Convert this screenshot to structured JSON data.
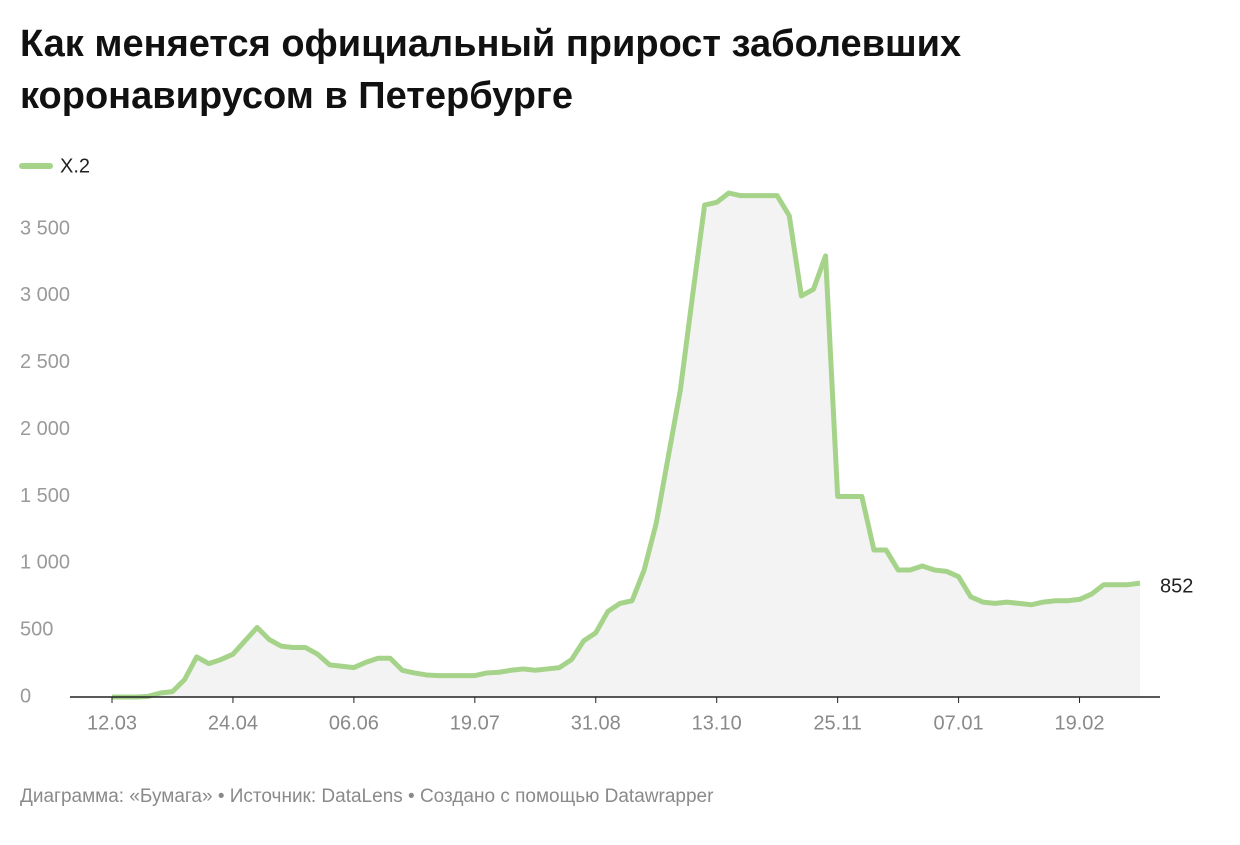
{
  "chart_data": {
    "type": "area-line",
    "title": "Как меняется официальный прирост заболевших коронавирусом в Петербурге",
    "source": "Диаграмма: «Бумага» • Источник: DataLens • Создано с помощью Datawrapper",
    "categories": [
      "12.03",
      null,
      null,
      null,
      null,
      null,
      null,
      null,
      null,
      null,
      "24.04",
      null,
      null,
      null,
      null,
      null,
      null,
      null,
      null,
      null,
      "06.06",
      null,
      null,
      null,
      null,
      null,
      null,
      null,
      null,
      null,
      "19.07",
      null,
      null,
      null,
      null,
      null,
      null,
      null,
      null,
      null,
      "31.08",
      null,
      null,
      null,
      null,
      null,
      null,
      null,
      null,
      null,
      "13.10",
      null,
      null,
      null,
      null,
      null,
      null,
      null,
      null,
      null,
      "25.11",
      null,
      null,
      null,
      null,
      null,
      null,
      null,
      null,
      null,
      "07.01",
      null,
      null,
      null,
      null,
      null,
      null,
      null,
      null,
      null,
      "19.02",
      null,
      null,
      null,
      null,
      null
    ],
    "series": [
      {
        "name": "X.2",
        "color": "#a6d38a",
        "values": [
          0,
          0,
          0,
          5,
          30,
          40,
          130,
          300,
          250,
          280,
          320,
          420,
          520,
          430,
          380,
          370,
          370,
          320,
          240,
          230,
          220,
          260,
          290,
          290,
          200,
          180,
          165,
          160,
          160,
          160,
          160,
          180,
          185,
          200,
          210,
          200,
          210,
          220,
          280,
          420,
          480,
          640,
          700,
          720,
          950,
          1300,
          1800,
          2300,
          3000,
          3680,
          3700,
          3770,
          3750,
          3750,
          3750,
          3750,
          3600,
          3000,
          3050,
          3300,
          1500,
          1500,
          1500,
          1100,
          1100,
          950,
          950,
          980,
          950,
          940,
          900,
          750,
          710,
          700,
          710,
          700,
          690,
          710,
          720,
          720,
          730,
          770,
          840,
          840,
          840,
          852
        ]
      }
    ],
    "ylim": [
      0,
      3800
    ],
    "yticks": [
      0,
      500,
      {
        "value": 1000,
        "label": "1 000"
      },
      {
        "value": 1500,
        "label": "1 500"
      },
      {
        "value": 2000,
        "label": "2 000"
      },
      {
        "value": 2500,
        "label": "2 500"
      },
      {
        "value": 3000,
        "label": "3 000"
      },
      {
        "value": 3500,
        "label": "3 500"
      }
    ],
    "fill": "#f3f3f3",
    "grid": false
  }
}
